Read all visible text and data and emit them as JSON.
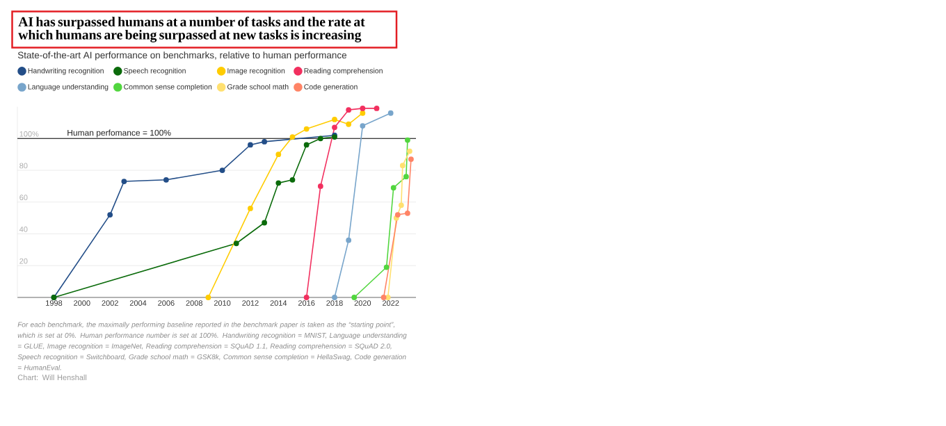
{
  "chart_data": {
    "type": "line",
    "title": "AI has surpassed humans at a number of tasks and the rate at which humans are being surpassed at new tasks is increasing",
    "subtitle": "State-of-the-art AI performance on benchmarks, relative to human performance",
    "xlim": [
      1995.4,
      2023.8
    ],
    "xticks": [
      1998,
      2000,
      2002,
      2004,
      2006,
      2008,
      2010,
      2012,
      2014,
      2016,
      2018,
      2020,
      2022
    ],
    "ylim": [
      0,
      120
    ],
    "yticks": [
      20,
      40,
      60,
      80,
      {
        "value": 100,
        "label": "100%"
      }
    ],
    "grid": "y",
    "legend": "top left",
    "marker": "circle",
    "line_style": "solid",
    "ref_lines": [
      {
        "axis": "y",
        "value": 100,
        "label": "Human perfomance = 100%",
        "color": "#000000"
      }
    ],
    "series": [
      {
        "name": "Handwriting recognition",
        "color": "#234e88",
        "x": [
          1998,
          2002,
          2003,
          2006,
          2010,
          2012,
          2013,
          2018
        ],
        "values": [
          0,
          52,
          73,
          74,
          80,
          96,
          98,
          102
        ]
      },
      {
        "name": "Speech recognition",
        "color": "#0b6b0b",
        "x": [
          1998,
          2011,
          2013,
          2014,
          2015,
          2016,
          2017,
          2018
        ],
        "values": [
          0,
          34,
          47,
          72,
          74,
          96,
          100,
          101
        ]
      },
      {
        "name": "Image recognition",
        "color": "#ffcc00",
        "x": [
          2009,
          2012,
          2014,
          2015,
          2016,
          2018,
          2019,
          2020
        ],
        "values": [
          0,
          56,
          90,
          101,
          106,
          112,
          109,
          116
        ]
      },
      {
        "name": "Reading comprehension",
        "color": "#f2305f",
        "x": [
          2016,
          2017,
          2018,
          2019,
          2020,
          2021
        ],
        "values": [
          0,
          70,
          107,
          118,
          119,
          119
        ]
      },
      {
        "name": "Language understanding",
        "color": "#78a5cb",
        "x": [
          2018,
          2019,
          2020,
          2022
        ],
        "values": [
          0,
          36,
          108,
          116
        ]
      },
      {
        "name": "Common sense completion",
        "color": "#52d63f",
        "x": [
          2019.4,
          2021.7,
          2022.2,
          2023.1,
          2023.2
        ],
        "values": [
          0,
          19,
          69,
          76,
          99
        ]
      },
      {
        "name": "Grade school math",
        "color": "#ffe070",
        "x": [
          2021.8,
          2022.4,
          2022.75,
          2022.85,
          2023.35
        ],
        "values": [
          0,
          50,
          58,
          83,
          92
        ]
      },
      {
        "name": "Code generation",
        "color": "#ff8466",
        "x": [
          2021.5,
          2022.5,
          2023.2,
          2023.45
        ],
        "values": [
          0,
          52,
          53,
          87
        ]
      }
    ],
    "annotations": [
      "For each benchmark, the maximally performing baseline reported in the benchmark paper is taken as the “starting point”, which is set at 0%. Human performance number is set at 100%. Handwriting recognition = MNIST, Language understanding = GLUE, Image recognition = ImageNet, Reading comprehension = SQuAD 1.1, Reading comprehension = SQuAD 2.0, Speech recognition = Switchboard, Grade school math = GSK8k, Common sense completion = HellaSwag, Code generation = HumanEval.",
      "Chart: Will Henshall"
    ]
  }
}
